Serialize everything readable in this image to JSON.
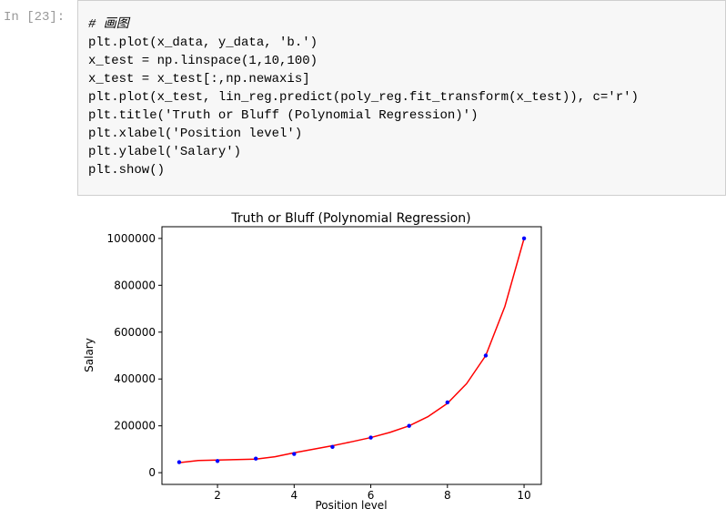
{
  "cell": {
    "prompt": "In [23]:",
    "code": [
      "# 画图",
      "plt.plot(x_data, y_data, 'b.')",
      "x_test = np.linspace(1,10,100)",
      "x_test = x_test[:,np.newaxis]",
      "plt.plot(x_test, lin_reg.predict(poly_reg.fit_transform(x_test)), c='r')",
      "plt.title('Truth or Bluff (Polynomial Regression)')",
      "plt.xlabel('Position level')",
      "plt.ylabel('Salary')",
      "plt.show()"
    ]
  },
  "chart_data": {
    "type": "scatter",
    "title": "Truth or Bluff (Polynomial Regression)",
    "xlabel": "Position level",
    "ylabel": "Salary",
    "xlim": [
      0.55,
      10.45
    ],
    "xticks": [
      2,
      4,
      6,
      8,
      10
    ],
    "ylim": [
      -50000,
      1050000
    ],
    "yticks": [
      0,
      200000,
      400000,
      600000,
      800000,
      1000000
    ],
    "series": [
      {
        "type": "scatter",
        "color": "#0000ff",
        "x": [
          1,
          2,
          3,
          4,
          5,
          6,
          7,
          8,
          9,
          10
        ],
        "values": [
          45000,
          50000,
          60000,
          80000,
          110000,
          150000,
          200000,
          300000,
          500000,
          1000000
        ]
      },
      {
        "type": "line",
        "color": "#ff0000",
        "x": [
          1,
          1.5,
          2,
          2.5,
          3,
          3.5,
          4,
          4.5,
          5,
          5.5,
          6,
          6.5,
          7,
          7.5,
          8,
          8.5,
          9,
          9.5,
          10
        ],
        "values": [
          43000,
          52000,
          54000,
          56000,
          58000,
          68000,
          85000,
          100000,
          115000,
          132000,
          150000,
          172000,
          200000,
          240000,
          296000,
          380000,
          500000,
          710000,
          1000000
        ]
      }
    ]
  }
}
